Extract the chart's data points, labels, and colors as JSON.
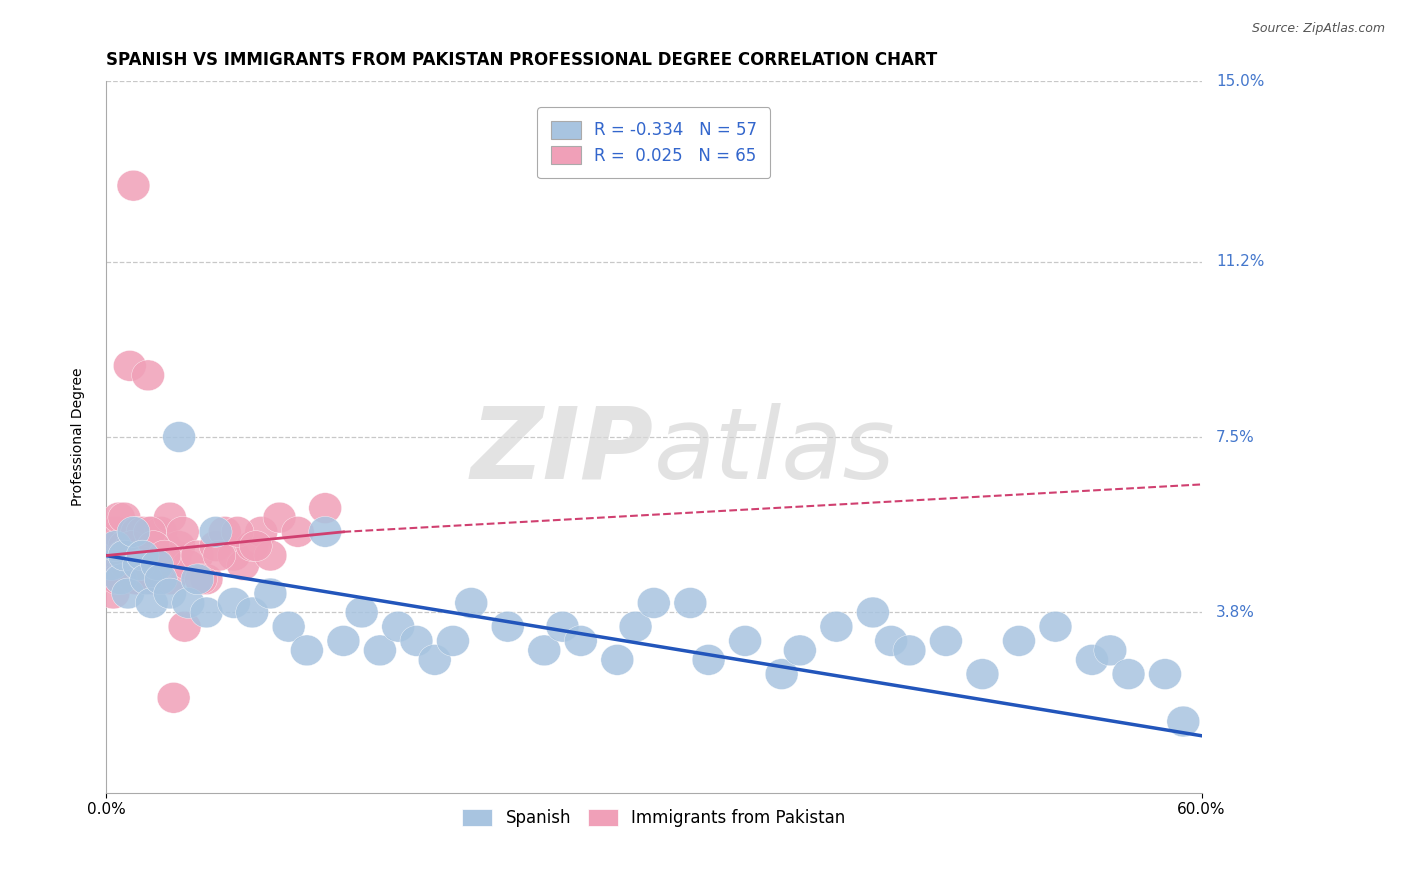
{
  "title": "SPANISH VS IMMIGRANTS FROM PAKISTAN PROFESSIONAL DEGREE CORRELATION CHART",
  "source": "Source: ZipAtlas.com",
  "ylabel": "Professional Degree",
  "xlim": [
    0.0,
    60.0
  ],
  "ylim": [
    0.0,
    15.0
  ],
  "yticks": [
    0.0,
    3.8,
    7.5,
    11.2,
    15.0
  ],
  "ytick_labels": [
    "",
    "3.8%",
    "7.5%",
    "11.2%",
    "15.0%"
  ],
  "xtick_labels": [
    "0.0%",
    "60.0%"
  ],
  "grid_color": "#c8c8c8",
  "background_color": "#ffffff",
  "blue_color": "#a8c4e0",
  "blue_line_color": "#2255bb",
  "pink_color": "#f0a0b8",
  "pink_line_color": "#d04070",
  "legend_label_blue": "R = -0.334   N = 57",
  "legend_label_pink": "R =  0.025   N = 65",
  "bottom_legend": [
    "Spanish",
    "Immigrants from Pakistan"
  ],
  "title_fontsize": 12,
  "axis_label_fontsize": 10,
  "tick_fontsize": 11,
  "legend_fontsize": 12,
  "spanish_x": [
    0.3,
    0.5,
    0.8,
    1.0,
    1.2,
    1.5,
    1.8,
    2.0,
    2.2,
    2.5,
    2.8,
    3.0,
    3.5,
    4.0,
    4.5,
    5.0,
    5.5,
    6.0,
    7.0,
    8.0,
    9.0,
    10.0,
    11.0,
    12.0,
    13.0,
    14.0,
    15.0,
    16.0,
    17.0,
    18.0,
    19.0,
    20.0,
    22.0,
    24.0,
    25.0,
    26.0,
    28.0,
    29.0,
    30.0,
    32.0,
    33.0,
    35.0,
    37.0,
    38.0,
    40.0,
    42.0,
    43.0,
    44.0,
    46.0,
    48.0,
    50.0,
    52.0,
    54.0,
    55.0,
    56.0,
    58.0,
    59.0
  ],
  "spanish_y": [
    4.8,
    5.2,
    4.5,
    5.0,
    4.2,
    5.5,
    4.8,
    5.0,
    4.5,
    4.0,
    4.8,
    4.5,
    4.2,
    7.5,
    4.0,
    4.5,
    3.8,
    5.5,
    4.0,
    3.8,
    4.2,
    3.5,
    3.0,
    5.5,
    3.2,
    3.8,
    3.0,
    3.5,
    3.2,
    2.8,
    3.2,
    4.0,
    3.5,
    3.0,
    3.5,
    3.2,
    2.8,
    3.5,
    4.0,
    4.0,
    2.8,
    3.2,
    2.5,
    3.0,
    3.5,
    3.8,
    3.2,
    3.0,
    3.2,
    2.5,
    3.2,
    3.5,
    2.8,
    3.0,
    2.5,
    2.5,
    1.5
  ],
  "pakistan_x": [
    0.2,
    0.3,
    0.5,
    0.5,
    0.7,
    0.8,
    1.0,
    1.0,
    1.0,
    1.2,
    1.3,
    1.5,
    1.5,
    1.5,
    1.7,
    1.8,
    1.8,
    2.0,
    2.0,
    2.0,
    2.2,
    2.3,
    2.5,
    2.5,
    2.7,
    2.8,
    3.0,
    3.0,
    3.2,
    3.5,
    3.5,
    3.8,
    4.0,
    4.2,
    4.5,
    5.0,
    5.5,
    6.0,
    6.5,
    7.0,
    7.5,
    8.0,
    8.5,
    9.0,
    0.4,
    0.6,
    0.9,
    1.1,
    1.4,
    1.6,
    1.9,
    2.1,
    2.4,
    2.6,
    2.9,
    3.2,
    3.7,
    4.3,
    5.2,
    6.2,
    7.2,
    8.2,
    9.5,
    10.5,
    12.0
  ],
  "pakistan_y": [
    4.8,
    5.2,
    5.5,
    4.5,
    5.8,
    4.8,
    5.2,
    4.5,
    5.8,
    4.8,
    9.0,
    5.2,
    4.8,
    12.8,
    5.5,
    5.0,
    4.5,
    5.0,
    4.8,
    5.5,
    5.2,
    8.8,
    4.5,
    5.5,
    5.0,
    5.2,
    4.8,
    5.5,
    5.2,
    4.5,
    5.8,
    5.0,
    5.2,
    5.5,
    4.8,
    5.0,
    4.5,
    5.2,
    5.5,
    5.0,
    4.8,
    5.2,
    5.5,
    5.0,
    4.2,
    4.5,
    5.0,
    4.8,
    5.2,
    4.5,
    5.0,
    4.8,
    5.5,
    5.2,
    4.8,
    5.0,
    2.0,
    3.5,
    4.5,
    5.0,
    5.5,
    5.2,
    5.8,
    5.5,
    6.0
  ],
  "blue_trend_start_y": 5.0,
  "blue_trend_end_y": 1.2,
  "pink_solid_end_x": 13.0,
  "pink_trend_start_y": 5.0,
  "pink_solid_end_y": 5.5,
  "pink_dashed_end_y": 6.5
}
